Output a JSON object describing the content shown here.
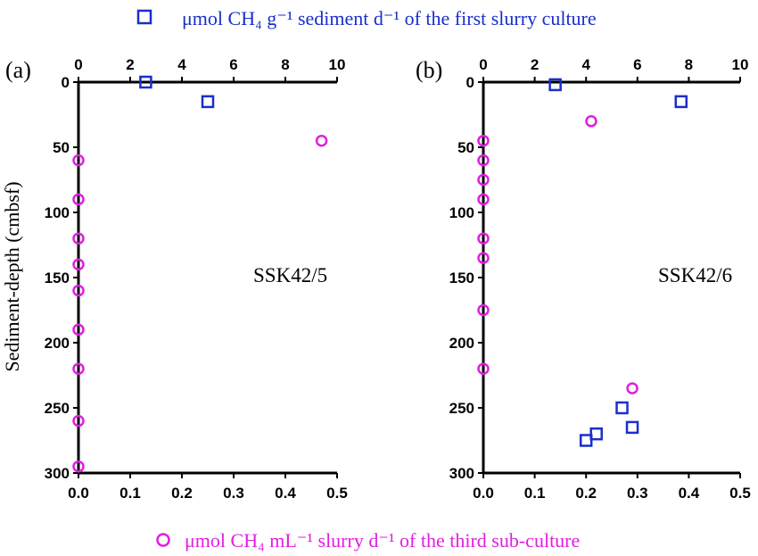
{
  "legend": {
    "square_label": "μmol CH₄ g⁻¹ sediment d⁻¹ of the first slurry culture",
    "circle_label": "μmol CH₄ mL⁻¹ slurry d⁻¹ of the third sub-culture"
  },
  "colors": {
    "square": "#1a2fc9",
    "circle": "#e01fe0",
    "axis": "#000000"
  },
  "chart_data": [
    {
      "type": "scatter",
      "panel_label": "(a)",
      "site_label": "SSK42/5",
      "ylabel": "Sediment-depth (cmbsf)",
      "ylim": [
        0,
        300
      ],
      "yticks": [
        "0",
        "50",
        "100",
        "150",
        "200",
        "250",
        "300"
      ],
      "top_axis": {
        "lim": [
          0,
          10
        ],
        "ticks": [
          "0",
          "2",
          "4",
          "6",
          "8",
          "10"
        ]
      },
      "bottom_axis": {
        "lim": [
          0,
          0.5
        ],
        "ticks": [
          "0.0",
          "0.1",
          "0.2",
          "0.3",
          "0.4",
          "0.5"
        ]
      },
      "series": [
        {
          "marker": "square",
          "axis": "top",
          "points": [
            [
              2.6,
              0
            ],
            [
              5.0,
              15
            ]
          ]
        },
        {
          "marker": "circle",
          "axis": "bottom",
          "points": [
            [
              0.47,
              45
            ],
            [
              0,
              60
            ],
            [
              0,
              90
            ],
            [
              0,
              120
            ],
            [
              0,
              140
            ],
            [
              0,
              160
            ],
            [
              0,
              190
            ],
            [
              0,
              220
            ],
            [
              0,
              260
            ],
            [
              0,
              295
            ]
          ]
        }
      ]
    },
    {
      "type": "scatter",
      "panel_label": "(b)",
      "site_label": "SSK42/6",
      "ylabel": "",
      "ylim": [
        0,
        300
      ],
      "yticks": [
        "0",
        "50",
        "100",
        "150",
        "200",
        "250",
        "300"
      ],
      "top_axis": {
        "lim": [
          0,
          10
        ],
        "ticks": [
          "0",
          "2",
          "4",
          "6",
          "8",
          "10"
        ]
      },
      "bottom_axis": {
        "lim": [
          0,
          0.5
        ],
        "ticks": [
          "0.0",
          "0.1",
          "0.2",
          "0.3",
          "0.4",
          "0.5"
        ]
      },
      "series": [
        {
          "marker": "square",
          "axis": "top",
          "points": [
            [
              2.8,
              2
            ],
            [
              7.7,
              15
            ],
            [
              4.0,
              275
            ],
            [
              4.4,
              270
            ],
            [
              5.4,
              250
            ],
            [
              5.8,
              265
            ]
          ]
        },
        {
          "marker": "circle",
          "axis": "bottom",
          "points": [
            [
              0.21,
              30
            ],
            [
              0.29,
              235
            ],
            [
              0,
              45
            ],
            [
              0,
              60
            ],
            [
              0,
              75
            ],
            [
              0,
              90
            ],
            [
              0,
              120
            ],
            [
              0,
              135
            ],
            [
              0,
              175
            ],
            [
              0,
              220
            ]
          ]
        }
      ]
    }
  ]
}
